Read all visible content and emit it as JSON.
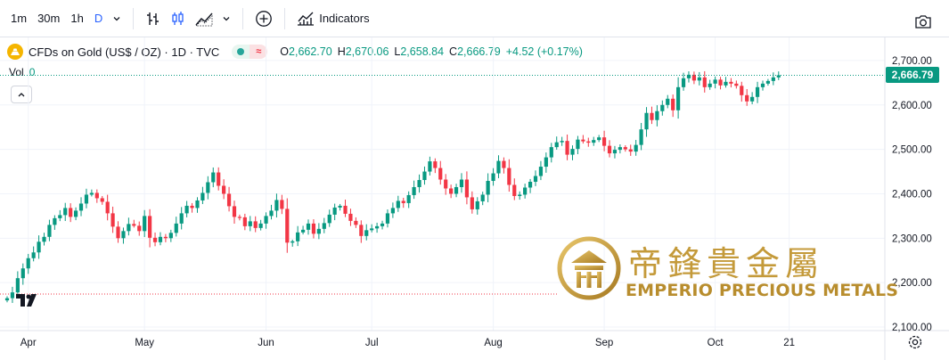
{
  "toolbar": {
    "timeframes": [
      {
        "label": "1m",
        "active": false
      },
      {
        "label": "30m",
        "active": false
      },
      {
        "label": "1h",
        "active": false
      },
      {
        "label": "D",
        "active": true
      }
    ],
    "indicators_label": "Indicators",
    "icons": [
      "chevron-down-icon",
      "bar-style-icon",
      "candle-style-icon",
      "area-style-icon",
      "chevron-down-icon",
      "add-compare-icon",
      "indicators-icon",
      "camera-icon"
    ]
  },
  "legend": {
    "title": "CFDs on Gold (US$ / OZ) · 1D · TVC",
    "open_label": "O",
    "open": "2,662.70",
    "high_label": "H",
    "high": "2,670.06",
    "low_label": "L",
    "low": "2,658.84",
    "close_label": "C",
    "close": "2,666.79",
    "change": "+4.52 (+0.17%)",
    "vol_label": "Vol",
    "vol_value": "0"
  },
  "colors": {
    "up": "#089981",
    "down": "#f23645",
    "accent": "#2962ff",
    "gold": "#c49a3a"
  },
  "watermark": {
    "chinese": "帝鋒貴金屬",
    "english": "EMPERIO PRECIOUS METALS"
  },
  "chart_data": {
    "type": "candlestick",
    "yticks": [
      "2,700.00",
      "2,600.00",
      "2,500.00",
      "2,400.00",
      "2,300.00",
      "2,200.00",
      "2,100.00"
    ],
    "ytick_values": [
      2700,
      2600,
      2500,
      2400,
      2300,
      2200,
      2100
    ],
    "ylim": [
      2092,
      2752
    ],
    "x_labels": [
      {
        "label": "Apr",
        "index": 4
      },
      {
        "label": "May",
        "index": 26
      },
      {
        "label": "Jun",
        "index": 49
      },
      {
        "label": "Jul",
        "index": 69
      },
      {
        "label": "Aug",
        "index": 92
      },
      {
        "label": "Sep",
        "index": 113
      },
      {
        "label": "Oct",
        "index": 134
      },
      {
        "label": "21",
        "index": 148
      }
    ],
    "last_price": "2,666.79",
    "last_value": 2666.79,
    "closes": [
      2165,
      2178,
      2210,
      2232,
      2255,
      2268,
      2292,
      2303,
      2330,
      2345,
      2352,
      2368,
      2348,
      2362,
      2378,
      2398,
      2402,
      2390,
      2382,
      2356,
      2326,
      2300,
      2316,
      2332,
      2328,
      2316,
      2350,
      2301,
      2291,
      2303,
      2300,
      2312,
      2333,
      2356,
      2373,
      2368,
      2385,
      2402,
      2426,
      2448,
      2418,
      2400,
      2372,
      2348,
      2347,
      2327,
      2338,
      2323,
      2333,
      2350,
      2362,
      2386,
      2366,
      2290,
      2293,
      2313,
      2319,
      2333,
      2310,
      2321,
      2334,
      2353,
      2369,
      2373,
      2355,
      2339,
      2330,
      2305,
      2318,
      2322,
      2327,
      2333,
      2356,
      2368,
      2384,
      2379,
      2397,
      2415,
      2431,
      2450,
      2473,
      2458,
      2432,
      2412,
      2400,
      2415,
      2432,
      2392,
      2365,
      2383,
      2398,
      2429,
      2446,
      2474,
      2458,
      2420,
      2395,
      2398,
      2414,
      2427,
      2440,
      2461,
      2482,
      2505,
      2516,
      2519,
      2488,
      2501,
      2522,
      2518,
      2515,
      2521,
      2527,
      2508,
      2491,
      2499,
      2505,
      2500,
      2495,
      2510,
      2545,
      2582,
      2566,
      2586,
      2600,
      2614,
      2588,
      2640,
      2660,
      2668,
      2655,
      2662,
      2640,
      2648,
      2657,
      2644,
      2652,
      2648,
      2643,
      2622,
      2608,
      2618,
      2640,
      2648,
      2654,
      2662,
      2666.79
    ],
    "open_first": 2160
  }
}
